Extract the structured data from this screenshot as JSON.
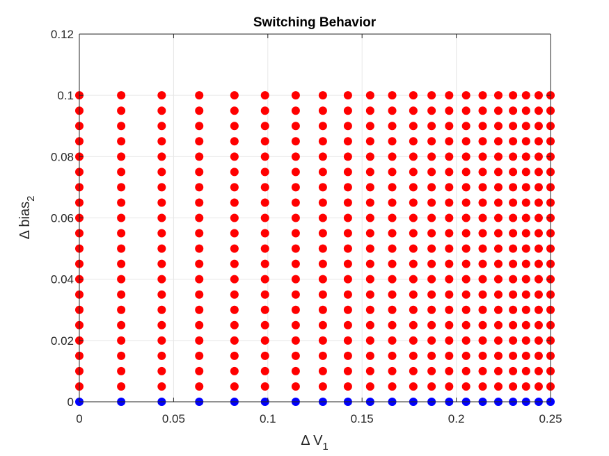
{
  "chart_data": {
    "type": "scatter",
    "title": "Switching Behavior",
    "xlabel": {
      "prefix": "Δ V",
      "sub": "1"
    },
    "ylabel": {
      "prefix": "Δ bias",
      "sub": "2"
    },
    "xlim": [
      0,
      0.25
    ],
    "ylim": [
      0,
      0.12
    ],
    "xticks": [
      0,
      0.05,
      0.1,
      0.15,
      0.2,
      0.25
    ],
    "xtick_labels": [
      "0",
      "0.05",
      "0.1",
      "0.15",
      "0.2",
      "0.25"
    ],
    "yticks": [
      0,
      0.02,
      0.04,
      0.06,
      0.08,
      0.1,
      0.12
    ],
    "ytick_labels": [
      "0",
      "0.02",
      "0.04",
      "0.06",
      "0.08",
      "0.1",
      "0.12"
    ],
    "grid": true,
    "box": true,
    "x_values": [
      0,
      0.0222,
      0.0437,
      0.0636,
      0.0823,
      0.0985,
      0.1148,
      0.1292,
      0.1425,
      0.1543,
      0.166,
      0.1772,
      0.1869,
      0.1962,
      0.2052,
      0.214,
      0.2223,
      0.2301,
      0.237,
      0.2437,
      0.25
    ],
    "y_values": [
      0,
      0.005,
      0.01,
      0.015,
      0.02,
      0.025,
      0.03,
      0.035,
      0.04,
      0.045,
      0.05,
      0.055,
      0.06,
      0.065,
      0.07,
      0.075,
      0.08,
      0.085,
      0.09,
      0.095,
      0.1
    ],
    "series": [
      {
        "color": "#0000ff",
        "rule": "points where Δ bias2 = 0"
      },
      {
        "color": "#ff0000",
        "rule": "points where Δ bias2 > 0"
      }
    ],
    "colors": {
      "axis": "#262626",
      "grid": "#e6e6e6",
      "background": "#ffffff"
    }
  }
}
